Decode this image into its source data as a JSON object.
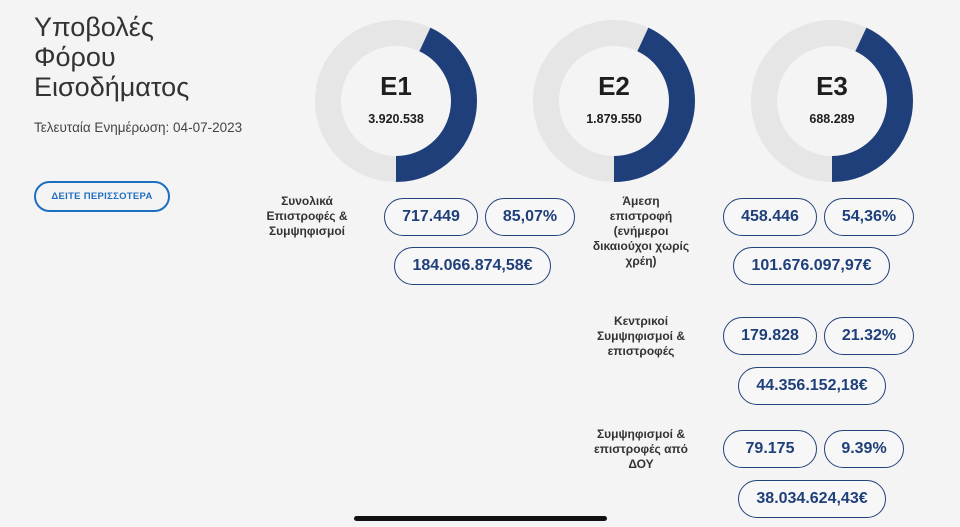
{
  "header": {
    "title_lines": [
      "Υποβολές",
      "Φόρου",
      "Εισοδήματος"
    ],
    "updated": "Τελευταία Ενημέρωση: 04-07-2023",
    "more_button": "ΔΕΙΤΕ ΠΕΡΙΣΣΟΤΕΡΑ"
  },
  "colors": {
    "accent": "#1f3f7a",
    "track": "#e6e6e6",
    "button": "#1f6fbf"
  },
  "gauges": [
    {
      "label": "E1",
      "value": "3.920.538",
      "fraction": 0.43
    },
    {
      "label": "E2",
      "value": "1.879.550",
      "fraction": 0.43
    },
    {
      "label": "E3",
      "value": "688.289",
      "fraction": 0.43
    }
  ],
  "summary": {
    "total": {
      "label": "Συνολικά Επιστροφές & Συμψηφισμοί",
      "count": "717.449",
      "percent": "85,07%",
      "amount": "184.066.874,58€"
    },
    "direct": {
      "label": "Άμεση επιστροφή (ενήμεροι δικαιούχοι χωρίς χρέη)",
      "count": "458.446",
      "percent": "54,36%",
      "amount": "101.676.097,97€"
    },
    "central": {
      "label": "Κεντρικοί Συμψηφισμοί & επιστροφές",
      "count": "179.828",
      "percent": "21.32%",
      "amount": "44.356.152,18€"
    },
    "doy": {
      "label": "Συμψηφισμοί & επιστροφές από ΔΟΥ",
      "count": "79.175",
      "percent": "9.39%",
      "amount": "38.034.624,43€"
    }
  }
}
